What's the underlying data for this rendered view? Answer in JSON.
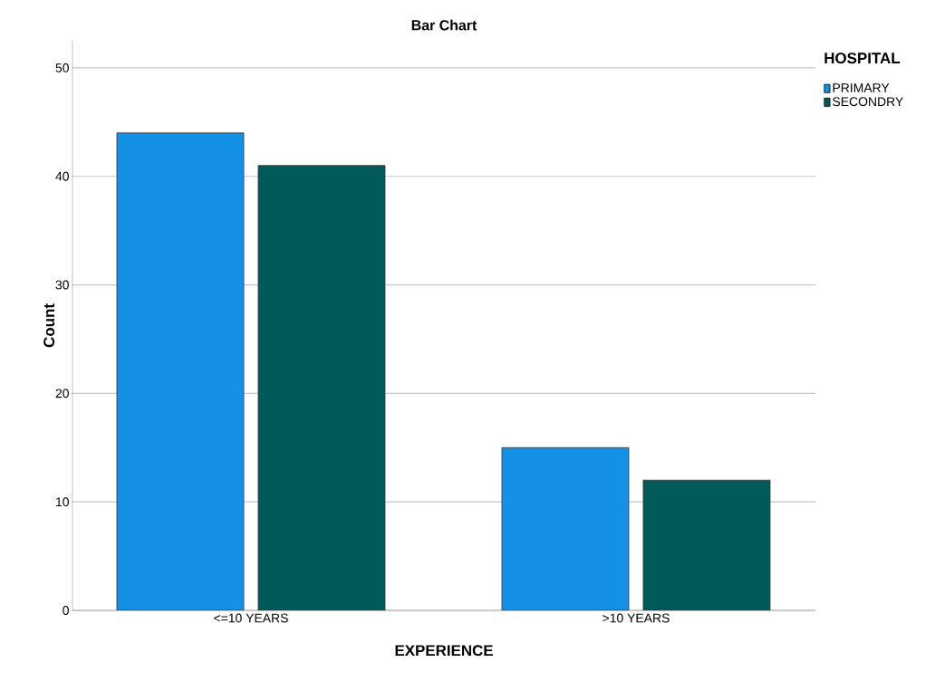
{
  "chart_data": {
    "type": "bar",
    "title": "Bar Chart",
    "xlabel": "EXPERIENCE",
    "ylabel": "Count",
    "legend_title": "HOSPITAL",
    "categories": [
      "<=10 YEARS",
      ">10 YEARS"
    ],
    "series": [
      {
        "name": "PRIMARY",
        "color": "#1490e6",
        "values": [
          44,
          15
        ]
      },
      {
        "name": "SECONDRY",
        "color": "#005a5a",
        "values": [
          41,
          12
        ]
      }
    ],
    "ylim": [
      0,
      52.5
    ],
    "yticks": [
      0,
      10,
      20,
      30,
      40,
      50
    ],
    "grid": "y",
    "legend": "top right"
  }
}
